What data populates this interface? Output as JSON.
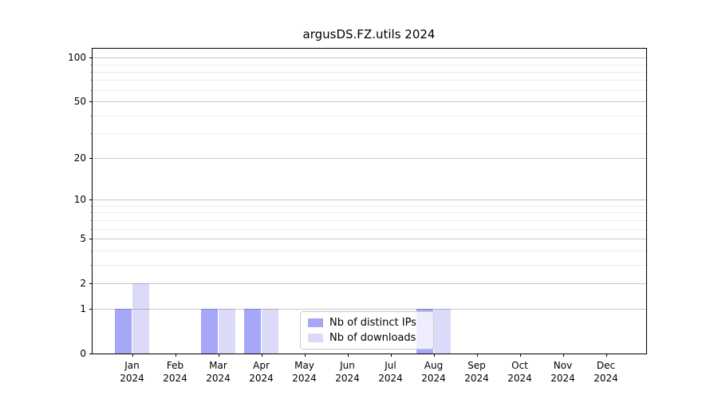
{
  "chart_data": {
    "type": "bar",
    "title": "argusDS.FZ.utils 2024",
    "categories": [
      "Jan",
      "Feb",
      "Mar",
      "Apr",
      "May",
      "Jun",
      "Jul",
      "Aug",
      "Sep",
      "Oct",
      "Nov",
      "Dec"
    ],
    "x_year_line": "2024",
    "series": [
      {
        "name": "Nb of distinct IPs",
        "color": "#a7a7f7",
        "values": [
          1,
          0,
          1,
          1,
          0,
          0,
          0,
          1,
          0,
          0,
          0,
          0
        ]
      },
      {
        "name": "Nb of downloads",
        "color": "#dbdbf9",
        "values": [
          2,
          0,
          1,
          1,
          0,
          0,
          0,
          1,
          0,
          0,
          0,
          0
        ]
      }
    ],
    "yscale": "log1p",
    "ylim": [
      0,
      115
    ],
    "yticks_major": [
      0,
      1,
      2,
      5,
      10,
      20,
      50,
      100
    ],
    "yticks_minor": [
      3,
      4,
      6,
      7,
      8,
      9,
      30,
      40,
      60,
      70,
      80,
      90
    ],
    "grid": true,
    "legend_position": "inside-bottom-center"
  }
}
